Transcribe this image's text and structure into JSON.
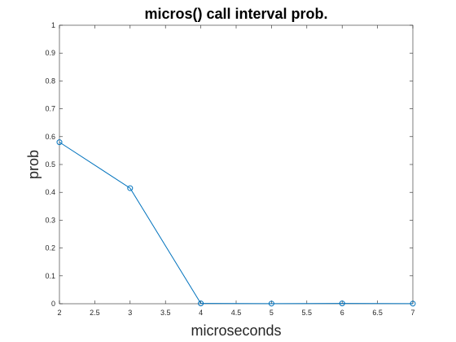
{
  "chart_data": {
    "type": "line",
    "title": "micros() call interval prob.",
    "xlabel": "microseconds",
    "ylabel": "prob",
    "xlim": [
      2,
      7
    ],
    "ylim": [
      0,
      1
    ],
    "xticks": [
      "2",
      "2.5",
      "3",
      "3.5",
      "4",
      "4.5",
      "5",
      "5.5",
      "6",
      "6.5",
      "7"
    ],
    "yticks": [
      "0",
      "0.1",
      "0.2",
      "0.3",
      "0.4",
      "0.5",
      "0.6",
      "0.7",
      "0.8",
      "0.9",
      "1"
    ],
    "grid": false,
    "series": [
      {
        "x": [
          2,
          3,
          4,
          5,
          6,
          7
        ],
        "y": [
          0.58,
          0.415,
          0.001,
          0.0005,
          0.001,
          0.0005
        ],
        "color": "#0072BD",
        "marker": "circle"
      }
    ]
  }
}
